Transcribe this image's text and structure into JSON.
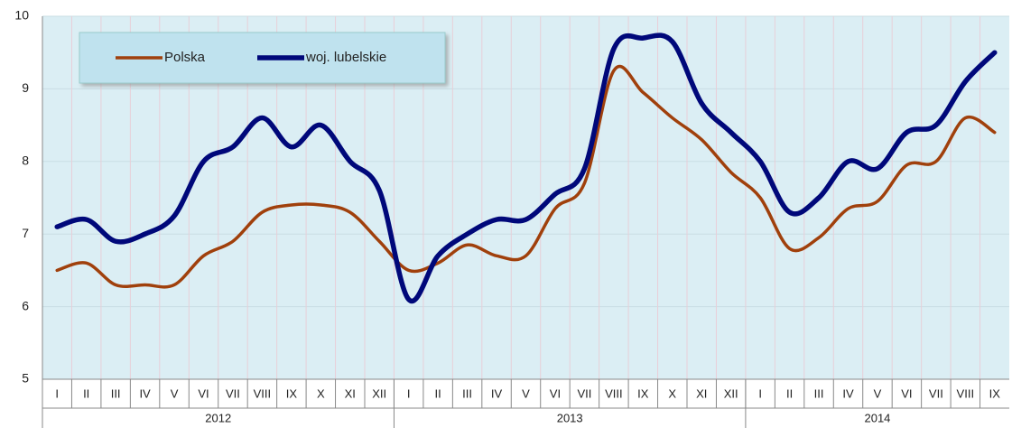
{
  "chart_data": {
    "type": "line",
    "groups": [
      {
        "label": "2012",
        "categories": [
          "I",
          "II",
          "III",
          "IV",
          "V",
          "VI",
          "VII",
          "VIII",
          "IX",
          "X",
          "XI",
          "XII"
        ]
      },
      {
        "label": "2013",
        "categories": [
          "I",
          "II",
          "III",
          "IV",
          "V",
          "VI",
          "VII",
          "VIII",
          "IX",
          "X",
          "XI",
          "XII"
        ]
      },
      {
        "label": "2014",
        "categories": [
          "I",
          "II",
          "III",
          "IV",
          "V",
          "VI",
          "VII",
          "VIII",
          "IX"
        ]
      }
    ],
    "series": [
      {
        "name": "Polska",
        "color": "#a0400c",
        "values": [
          6.5,
          6.6,
          6.3,
          6.3,
          6.3,
          6.7,
          6.9,
          7.3,
          7.4,
          7.4,
          7.3,
          6.9,
          6.5,
          6.6,
          6.85,
          6.7,
          6.7,
          7.35,
          7.7,
          9.25,
          8.95,
          8.6,
          8.3,
          7.85,
          7.5,
          6.8,
          6.95,
          7.35,
          7.45,
          7.95,
          8.0,
          8.6,
          8.4
        ]
      },
      {
        "name": "woj. lubelskie",
        "color": "#00087a",
        "values": [
          7.1,
          7.2,
          6.9,
          7.0,
          7.25,
          8.0,
          8.2,
          8.6,
          8.2,
          8.5,
          8.0,
          7.6,
          6.1,
          6.7,
          7.0,
          7.2,
          7.2,
          7.55,
          7.9,
          9.55,
          9.7,
          9.65,
          8.8,
          8.4,
          8.0,
          7.3,
          7.5,
          8.0,
          7.9,
          8.4,
          8.5,
          9.1,
          9.5
        ]
      }
    ],
    "ylim": [
      5,
      10
    ],
    "yticks": [
      5,
      6,
      7,
      8,
      9,
      10
    ],
    "grid": true,
    "legend": "top-left"
  }
}
